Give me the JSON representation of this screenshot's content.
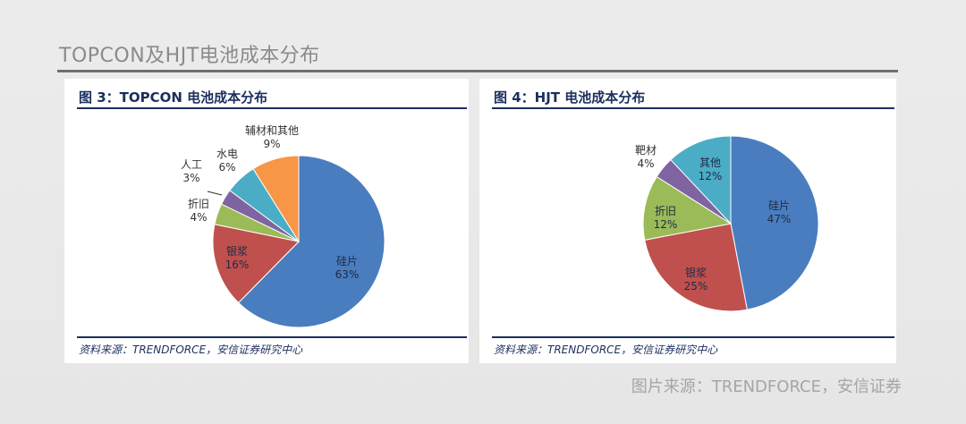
{
  "slide": {
    "title": "TOPCON及HJT电池成本分布",
    "credit": "图片来源：TRENDFORCE，安信证券"
  },
  "chart_data": [
    {
      "type": "pie",
      "title": "图 3：TOPCON 电池成本分布",
      "source": "资料来源：TRENDFORCE，安信证券研究中心",
      "slices": [
        {
          "name": "硅片",
          "label": "63%",
          "value": 63,
          "color": "#4a7dbf"
        },
        {
          "name": "银浆",
          "label": "16%",
          "value": 16,
          "color": "#c0504d"
        },
        {
          "name": "折旧",
          "label": "4%",
          "value": 4,
          "color": "#9bbb59"
        },
        {
          "name": "人工",
          "label": "3%",
          "value": 3,
          "color": "#7f64a2"
        },
        {
          "name": "水电",
          "label": "6%",
          "value": 6,
          "color": "#4bacc6"
        },
        {
          "name": "辅材和其他",
          "label": "9%",
          "value": 9,
          "color": "#f79646"
        }
      ]
    },
    {
      "type": "pie",
      "title": "图 4：HJT 电池成本分布",
      "source": "资料来源：TRENDFORCE，安信证券研究中心",
      "slices": [
        {
          "name": "硅片",
          "label": "47%",
          "value": 47,
          "color": "#4a7dbf"
        },
        {
          "name": "银浆",
          "label": "25%",
          "value": 25,
          "color": "#c0504d"
        },
        {
          "name": "折旧",
          "label": "12%",
          "value": 12,
          "color": "#9bbb59"
        },
        {
          "name": "靶材",
          "label": "4%",
          "value": 4,
          "color": "#7f64a2"
        },
        {
          "name": "其他",
          "label": "12%",
          "value": 12,
          "color": "#4bacc6"
        }
      ]
    }
  ]
}
